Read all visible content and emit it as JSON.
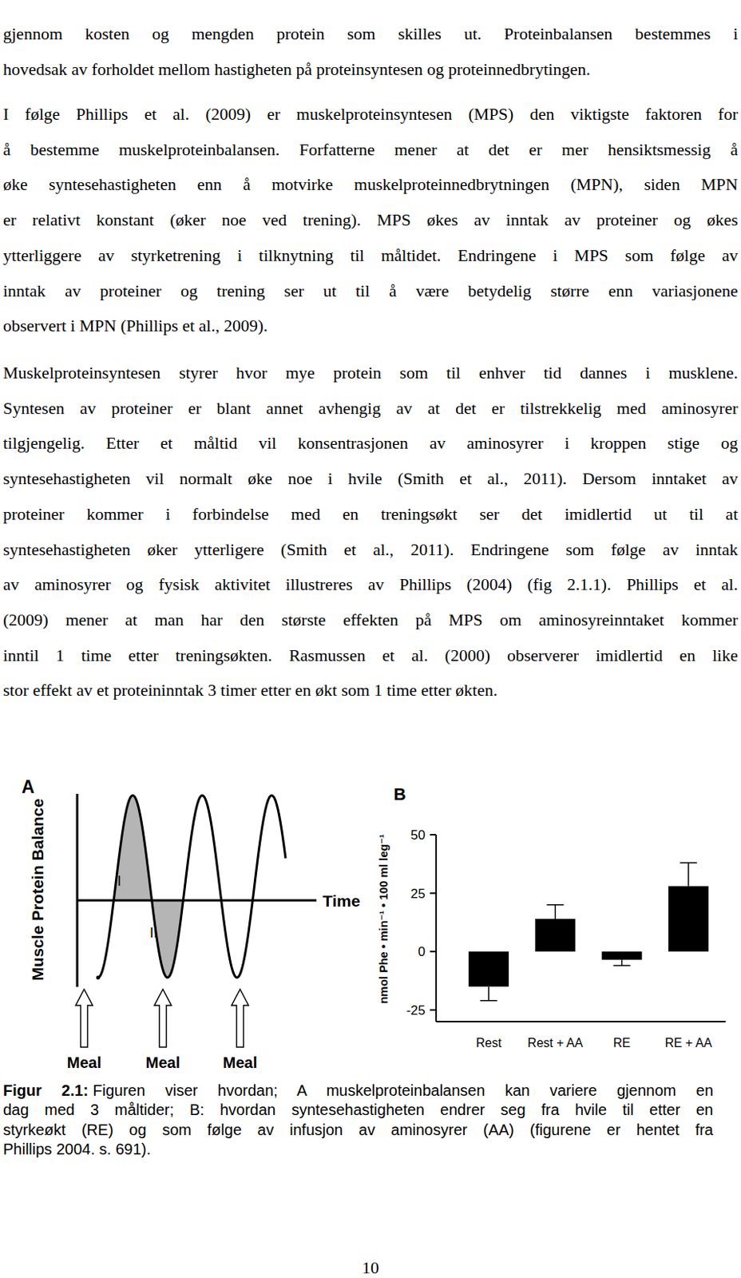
{
  "paragraphs": [
    {
      "lines": [
        "gjennom kosten og mengden protein som skilles ut. Proteinbalansen bestemmes i",
        "hovedsak av forholdet mellom hastigheten på proteinsyntesen og proteinnedbrytingen."
      ]
    },
    {
      "lines": [
        "I følge Phillips et al. (2009) er muskelproteinsyntesen (MPS) den viktigste faktoren for",
        "å bestemme muskelproteinbalansen. Forfatterne mener at det er mer hensiktsmessig å",
        "øke syntesehastigheten enn å motvirke muskelproteinnedbrytningen (MPN), siden MPN",
        "er relativt konstant (øker noe ved trening). MPS økes av inntak av proteiner og økes",
        "ytterliggere av styrketrening i tilknytning til måltidet. Endringene i MPS som følge av",
        "inntak av proteiner og trening ser ut til å være betydelig større enn variasjonene",
        "observert i MPN (Phillips et al., 2009)."
      ]
    },
    {
      "lines": [
        "Muskelproteinsyntesen styrer hvor mye protein som til enhver tid dannes i musklene.",
        "Syntesen av proteiner er blant annet avhengig av at det er tilstrekkelig med aminosyrer",
        "tilgjengelig. Etter et måltid vil konsentrasjonen av aminosyrer i kroppen stige og",
        "syntesehastigheten vil normalt øke noe i hvile (Smith et al., 2011). Dersom inntaket av",
        "proteiner kommer i forbindelse med en treningsøkt ser det imidlertid ut til at",
        "syntesehastigheten øker ytterligere (Smith et al., 2011). Endringene som følge av inntak",
        "av aminosyrer og fysisk aktivitet illustreres av Phillips (2004) (fig 2.1.1). Phillips et al.",
        "(2009) mener at man har den største effekten på MPS om aminosyreinntaket kommer",
        "inntil 1 time etter treningsøkten. Rasmussen et al. (2000) observerer imidlertid en like",
        "stor effekt av et proteininntak 3 timer etter en økt som 1 time etter økten."
      ]
    }
  ],
  "figure": {
    "panel_a": {
      "label": "A",
      "y_label": "Muscle Protein Balance",
      "x_label": "Time",
      "regions": [
        "I",
        "II"
      ],
      "meals": [
        "Meal",
        "Meal",
        "Meal"
      ]
    }
  },
  "chart_data": {
    "type": "bar",
    "title": "B",
    "y_label": "nmol Phe • min⁻¹ • 100 ml leg⁻¹",
    "categories": [
      "Rest",
      "Rest + AA",
      "RE",
      "RE + AA"
    ],
    "values": [
      -15,
      14,
      -3.5,
      28
    ],
    "errors": [
      6,
      6,
      2.5,
      10
    ],
    "color": "#000000",
    "ylim": [
      -30,
      50
    ],
    "yticks": [
      -25,
      0,
      25,
      50
    ]
  },
  "caption": {
    "label": "Figur 2.1:",
    "lines": [
      "Figuren viser hvordan; A muskelproteinbalansen kan variere gjennom en",
      "dag med 3 måltider; B: hvordan syntesehastigheten endrer seg fra hvile til etter en",
      "styrkeøkt (RE) og som følge av infusjon av aminosyrer (AA) (figurene er hentet fra",
      "Phillips 2004. s. 691)."
    ]
  },
  "page_number": "10"
}
